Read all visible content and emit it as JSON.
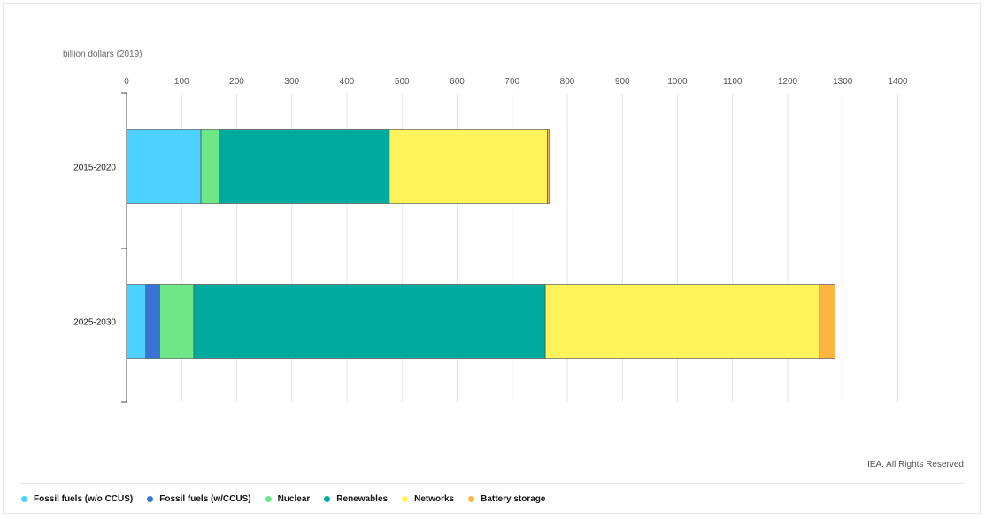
{
  "chart_data": {
    "type": "bar",
    "orientation": "horizontal",
    "stacked": true,
    "unit_label": "billion dollars (2019)",
    "categories": [
      "2015-2020",
      "2025-2030"
    ],
    "x_ticks": [
      "0",
      "100",
      "200",
      "300",
      "400",
      "500",
      "600",
      "700",
      "800",
      "900",
      "1000",
      "1100",
      "1200",
      "1300",
      "1400"
    ],
    "xlim": [
      0,
      1400
    ],
    "series": [
      {
        "name": "Fossil fuels (w/o CCUS)",
        "color": "#4dd2ff",
        "values": [
          135,
          35
        ]
      },
      {
        "name": "Fossil fuels (w/CCUS)",
        "color": "#3a73d6",
        "values": [
          0,
          25
        ]
      },
      {
        "name": "Nuclear",
        "color": "#6ee887",
        "values": [
          33,
          62
        ]
      },
      {
        "name": "Renewables",
        "color": "#00ab9e",
        "values": [
          309,
          638
        ]
      },
      {
        "name": "Networks",
        "color": "#fff35c",
        "values": [
          287,
          498
        ]
      },
      {
        "name": "Battery storage",
        "color": "#fbb642",
        "values": [
          3,
          28
        ]
      }
    ],
    "grid": true,
    "legend_position": "bottom"
  },
  "credit": "IEA. All Rights Reserved"
}
